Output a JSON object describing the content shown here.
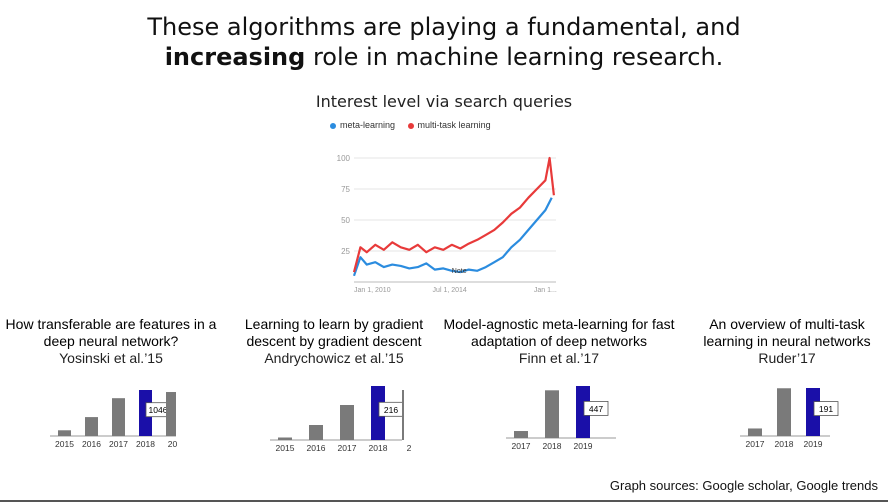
{
  "headline": {
    "line1": "These algorithms are playing a fundamental, and",
    "line2_bold": "increasing",
    "line2_rest": " role in machine learning research."
  },
  "trends": {
    "title": "Interest level via search queries",
    "legend": [
      {
        "label": "meta-learning",
        "color": "#2b8cdf"
      },
      {
        "label": "multi-task learning",
        "color": "#e83a3a"
      }
    ]
  },
  "chart_data": [
    {
      "type": "line",
      "title": "Interest level via search queries",
      "ylim": [
        0,
        100
      ],
      "yticks": [
        "100",
        "75",
        "50",
        "25"
      ],
      "xticks": [
        "Jan 1, 2010",
        "Jul 1, 2014",
        "Jan 1..."
      ],
      "x_range": [
        2010.0,
        2019.5
      ],
      "grid": true,
      "legend_position": "top",
      "annotation": "Note",
      "series": [
        {
          "name": "meta-learning",
          "color": "#2b8cdf",
          "x": [
            2010.0,
            2010.3,
            2010.6,
            2011.0,
            2011.4,
            2011.8,
            2012.2,
            2012.6,
            2013.0,
            2013.4,
            2013.8,
            2014.2,
            2014.6,
            2015.0,
            2015.4,
            2015.8,
            2016.2,
            2016.6,
            2017.0,
            2017.4,
            2017.8,
            2018.2,
            2018.6,
            2019.0,
            2019.3
          ],
          "values": [
            5,
            20,
            14,
            16,
            12,
            14,
            13,
            11,
            12,
            15,
            10,
            11,
            9,
            8,
            10,
            9,
            12,
            16,
            20,
            28,
            34,
            42,
            50,
            58,
            68
          ]
        },
        {
          "name": "multi-task learning",
          "color": "#e83a3a",
          "x": [
            2010.0,
            2010.3,
            2010.6,
            2011.0,
            2011.4,
            2011.8,
            2012.2,
            2012.6,
            2013.0,
            2013.4,
            2013.8,
            2014.2,
            2014.6,
            2015.0,
            2015.4,
            2015.8,
            2016.2,
            2016.6,
            2017.0,
            2017.4,
            2017.8,
            2018.2,
            2018.6,
            2019.0,
            2019.2,
            2019.4
          ],
          "values": [
            8,
            28,
            24,
            30,
            26,
            32,
            28,
            26,
            30,
            24,
            28,
            26,
            30,
            27,
            31,
            34,
            38,
            42,
            48,
            55,
            60,
            68,
            75,
            82,
            100,
            70
          ]
        }
      ]
    },
    {
      "type": "bar",
      "categories": [
        "2015",
        "2016",
        "2017",
        "2018",
        "20"
      ],
      "values": [
        130,
        430,
        860,
        1046,
        1000
      ],
      "highlight_index": 3,
      "label": "1046"
    },
    {
      "type": "bar",
      "categories": [
        "2015",
        "2016",
        "2017",
        "2018",
        "2"
      ],
      "values": [
        10,
        60,
        140,
        216,
        200
      ],
      "highlight_index": 3,
      "label": "216"
    },
    {
      "type": "bar",
      "categories": [
        "2017",
        "2018",
        "2019"
      ],
      "values": [
        60,
        410,
        447
      ],
      "highlight_index": 2,
      "label": "447"
    },
    {
      "type": "bar",
      "categories": [
        "2017",
        "2018",
        "2019"
      ],
      "values": [
        30,
        190,
        191
      ],
      "highlight_index": 2,
      "label": "191"
    }
  ],
  "papers": [
    {
      "title": "How transferable are features in a deep neural network?",
      "authors": "Yosinski et al.’15"
    },
    {
      "title": "Learning to learn by gradient descent by gradient descent",
      "authors": "Andrychowicz et al.’15"
    },
    {
      "title": "Model-agnostic meta-learning for fast adaptation of deep networks",
      "authors": "Finn et al.’17"
    },
    {
      "title": "An overview of multi-task learning in neural networks",
      "authors": "Ruder’17"
    }
  ],
  "colors": {
    "bar_gray": "#7a7a7a",
    "bar_highlight": "#1a0fa8",
    "grid": "#e4e4e4"
  },
  "sources": "Graph sources: Google scholar, Google trends"
}
